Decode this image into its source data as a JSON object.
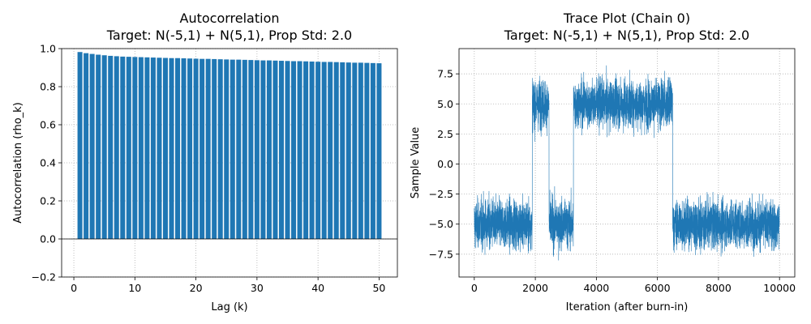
{
  "chart_data": [
    {
      "type": "bar",
      "title": "Autocorrelation",
      "subtitle": "Target: N(-5,1) + N(5,1), Prop Std: 2.0",
      "xlabel": "Lag (k)",
      "ylabel": "Autocorrelation (rho_k)",
      "xlim": [
        -2,
        53
      ],
      "ylim": [
        -0.2,
        1.0
      ],
      "xticks": [
        0,
        10,
        20,
        30,
        40,
        50
      ],
      "yticks": [
        -0.2,
        0.0,
        0.2,
        0.4,
        0.6,
        0.8,
        1.0
      ],
      "ytick_labels": [
        "−0.2",
        "0.0",
        "0.2",
        "0.4",
        "0.6",
        "0.8",
        "1.0"
      ],
      "grid": true,
      "color": "#1f77b4",
      "x": [
        1,
        2,
        3,
        4,
        5,
        6,
        7,
        8,
        9,
        10,
        11,
        12,
        13,
        14,
        15,
        16,
        17,
        18,
        19,
        20,
        21,
        22,
        23,
        24,
        25,
        26,
        27,
        28,
        29,
        30,
        31,
        32,
        33,
        34,
        35,
        36,
        37,
        38,
        39,
        40,
        41,
        42,
        43,
        44,
        45,
        46,
        47,
        48,
        49,
        50
      ],
      "values": [
        0.982,
        0.976,
        0.972,
        0.968,
        0.965,
        0.962,
        0.96,
        0.958,
        0.957,
        0.956,
        0.955,
        0.954,
        0.953,
        0.952,
        0.951,
        0.95,
        0.95,
        0.949,
        0.948,
        0.947,
        0.946,
        0.946,
        0.945,
        0.944,
        0.943,
        0.942,
        0.942,
        0.941,
        0.94,
        0.939,
        0.938,
        0.938,
        0.937,
        0.936,
        0.935,
        0.934,
        0.934,
        0.933,
        0.932,
        0.931,
        0.93,
        0.93,
        0.929,
        0.928,
        0.927,
        0.926,
        0.926,
        0.925,
        0.924,
        0.923
      ]
    },
    {
      "type": "line",
      "title": "Trace Plot (Chain 0)",
      "subtitle": "Target: N(-5,1) + N(5,1), Prop Std: 2.0",
      "xlabel": "Iteration (after burn-in)",
      "ylabel": "Sample Value",
      "xlim": [
        -500,
        10500
      ],
      "ylim": [
        -9.4,
        9.6
      ],
      "xticks": [
        0,
        2000,
        4000,
        6000,
        8000,
        10000
      ],
      "yticks": [
        -7.5,
        -5.0,
        -2.5,
        0.0,
        2.5,
        5.0,
        7.5
      ],
      "ytick_labels": [
        "−7.5",
        "−5.0",
        "−2.5",
        "0.0",
        "2.5",
        "5.0",
        "7.5"
      ],
      "grid": true,
      "color": "#1f77b4",
      "n_samples": 10000,
      "segments": [
        {
          "start": 0,
          "end": 1900,
          "mean": -5.0,
          "std": 1.0
        },
        {
          "start": 1900,
          "end": 2450,
          "mean": 5.0,
          "std": 1.0
        },
        {
          "start": 2450,
          "end": 3250,
          "mean": -5.0,
          "std": 1.0
        },
        {
          "start": 3250,
          "end": 6500,
          "mean": 5.0,
          "std": 1.0
        },
        {
          "start": 6500,
          "end": 10000,
          "mean": -5.0,
          "std": 1.0
        }
      ],
      "ymax_observed": 8.7,
      "ymin_observed": -8.7
    }
  ]
}
